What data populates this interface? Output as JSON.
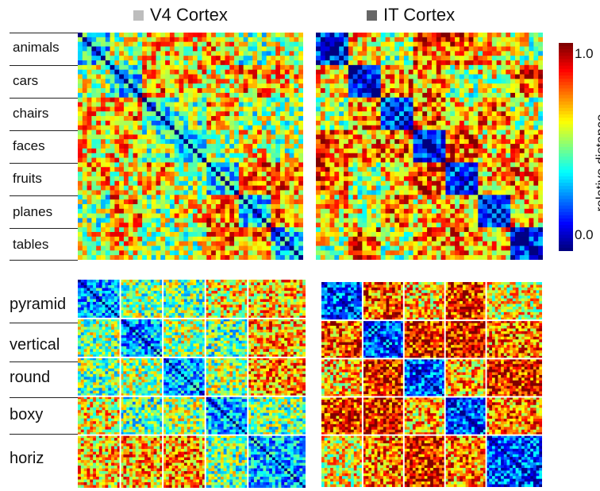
{
  "chart_data": [
    {
      "type": "heatmap",
      "title": "V4 Cortex",
      "title_swatch_color": "#bdbdbd",
      "categories": [
        "animals",
        "cars",
        "chairs",
        "faces",
        "fruits",
        "planes",
        "tables"
      ],
      "items_per_category": 7,
      "colorbar": {
        "label": "relative distance",
        "min": 0.0,
        "max": 1.0,
        "ticks": [
          "1.0",
          "0.0"
        ]
      },
      "within_category_distance": 0.35,
      "between_category_distance": 0.6,
      "diagonal": 0.0
    },
    {
      "type": "heatmap",
      "title": "IT Cortex",
      "title_swatch_color": "#666666",
      "categories": [
        "animals",
        "cars",
        "chairs",
        "faces",
        "fruits",
        "planes",
        "tables"
      ],
      "items_per_category": 7,
      "colorbar": {
        "label": "relative distance",
        "min": 0.0,
        "max": 1.0,
        "ticks": [
          "1.0",
          "0.0"
        ]
      },
      "within_category_distance": 0.15,
      "between_category_distance": 0.65,
      "diagonal": 0.0
    },
    {
      "type": "heatmap",
      "categories": [
        "pyramid",
        "vertical",
        "round",
        "boxy",
        "horiz"
      ],
      "block_weights": [
        1,
        1,
        1,
        1,
        1.35
      ],
      "within_category_distance": 0.3,
      "between_category_distance": 0.6,
      "diagonal": 0.0
    },
    {
      "type": "heatmap",
      "categories": [
        "pyramid",
        "vertical",
        "round",
        "boxy",
        "horiz"
      ],
      "block_weights": [
        1,
        1,
        1,
        1,
        1.35
      ],
      "within_category_distance": 0.2,
      "between_category_distance": 0.75,
      "diagonal": 0.0
    }
  ],
  "colors": {
    "low": "#1e2a8c",
    "mid": "#d9e82a",
    "high": "#a01010"
  }
}
